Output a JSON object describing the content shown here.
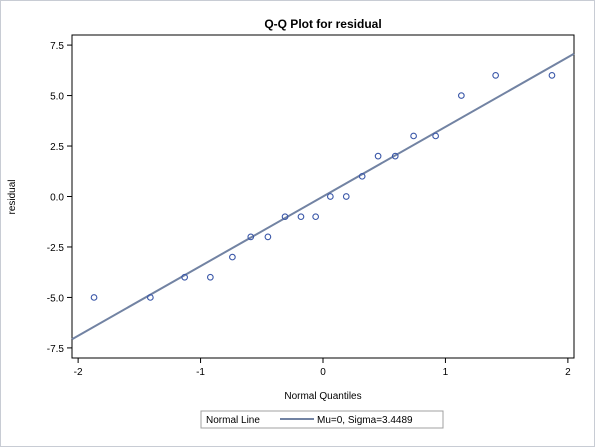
{
  "chart_data": {
    "type": "scatter",
    "title": "Q-Q Plot for residual",
    "xlabel": "Normal Quantiles",
    "ylabel": "residual",
    "xlim": [
      -2.05,
      2.05
    ],
    "ylim": [
      -8.0,
      8.0
    ],
    "x_ticks": [
      -2,
      -1,
      0,
      1,
      2
    ],
    "x_tick_labels": [
      "-2",
      "-1",
      "0",
      "1",
      "2"
    ],
    "y_ticks": [
      -7.5,
      -5.0,
      -2.5,
      0.0,
      2.5,
      5.0,
      7.5
    ],
    "y_tick_labels": [
      "-7.5",
      "-5.0",
      "-2.5",
      "0.0",
      "2.5",
      "5.0",
      "7.5"
    ],
    "grid": false,
    "points": [
      {
        "x": -1.87,
        "y": -5
      },
      {
        "x": -1.41,
        "y": -5
      },
      {
        "x": -1.13,
        "y": -4
      },
      {
        "x": -0.92,
        "y": -4
      },
      {
        "x": -0.74,
        "y": -3
      },
      {
        "x": -0.59,
        "y": -2
      },
      {
        "x": -0.45,
        "y": -2
      },
      {
        "x": -0.31,
        "y": -1
      },
      {
        "x": -0.18,
        "y": -1
      },
      {
        "x": -0.06,
        "y": -1
      },
      {
        "x": 0.06,
        "y": 0
      },
      {
        "x": 0.19,
        "y": 0
      },
      {
        "x": 0.32,
        "y": 1
      },
      {
        "x": 0.45,
        "y": 2
      },
      {
        "x": 0.59,
        "y": 2
      },
      {
        "x": 0.74,
        "y": 3
      },
      {
        "x": 0.92,
        "y": 3
      },
      {
        "x": 1.13,
        "y": 5
      },
      {
        "x": 1.41,
        "y": 6
      },
      {
        "x": 1.87,
        "y": 6
      }
    ],
    "normal_line": {
      "mu": 0,
      "sigma": 3.4489
    },
    "legend": {
      "placement": "bottom",
      "title": "Normal Line",
      "entry": "Mu=0, Sigma=3.4489"
    },
    "colors": {
      "marker": "#3a57a8",
      "line": "#7283a3",
      "frame": "#000000"
    }
  }
}
